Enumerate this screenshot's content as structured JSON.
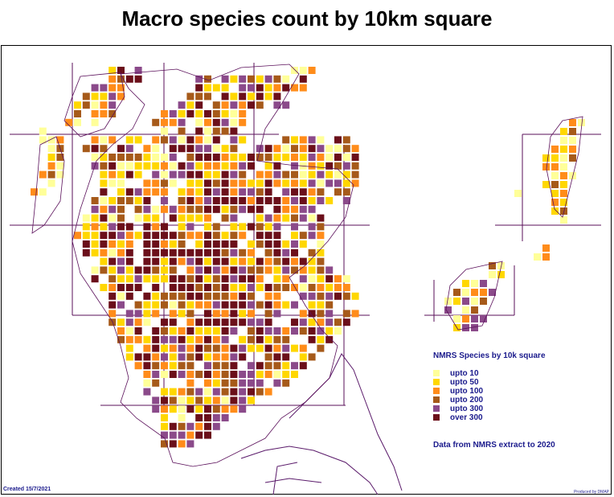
{
  "title": "Macro species count by 10km square",
  "legend": {
    "title": "NMRS Species by 10k square",
    "items": [
      {
        "label": "upto 10",
        "color": "#ffff99"
      },
      {
        "label": "upto 50",
        "color": "#ffd700"
      },
      {
        "label": "upto 100",
        "color": "#ff8c1a"
      },
      {
        "label": "upto 200",
        "color": "#a65a1a"
      },
      {
        "label": "upto 300",
        "color": "#8b4a8a"
      },
      {
        "label": "over 300",
        "color": "#6b0f1a"
      }
    ]
  },
  "note": "Data from NMRS extract to 2020",
  "created": "Created 15/7/2021",
  "produced": "Produced by DMAP",
  "colors": {
    "grid_lines": "#5a0f5a",
    "coastline": "#5a0f5a",
    "england_outline": "#5a1a6a"
  }
}
